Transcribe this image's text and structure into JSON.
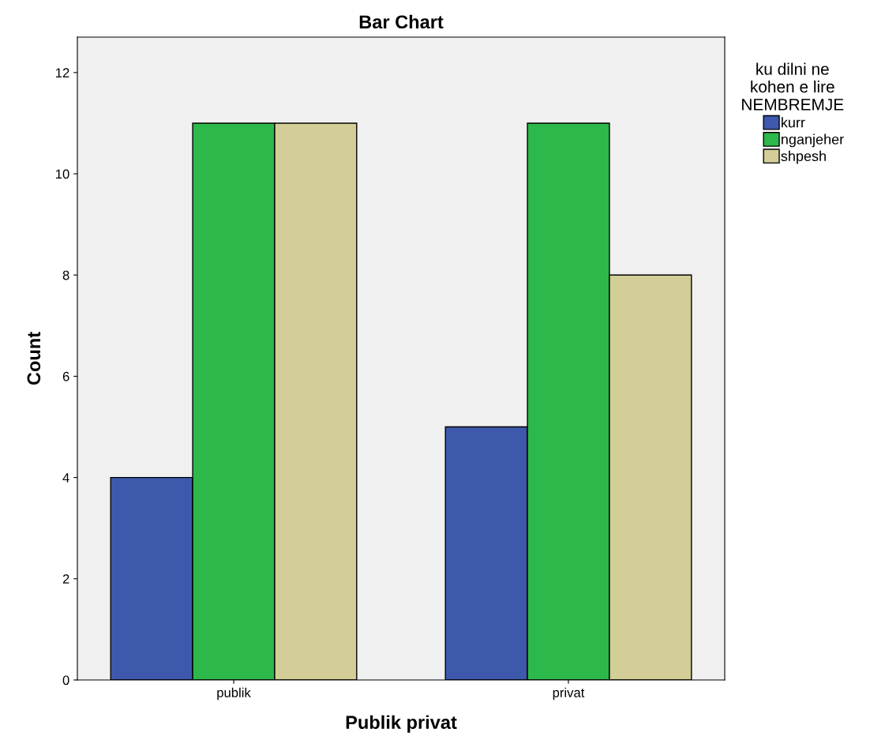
{
  "chart_data": {
    "type": "bar",
    "title": "Bar Chart",
    "xlabel": "Publik privat",
    "ylabel": "Count",
    "legend_title": "ku dilni ne\nkohen e lire\nNEMBREMJE",
    "categories": [
      "publik",
      "privat"
    ],
    "series": [
      {
        "name": "kurr",
        "color": "#3e58ac",
        "values": [
          4,
          5
        ]
      },
      {
        "name": "nganjeher",
        "color": "#2db84b",
        "values": [
          11,
          11
        ]
      },
      {
        "name": "shpesh",
        "color": "#d3ce97",
        "values": [
          11,
          8
        ]
      }
    ],
    "ylim": [
      0,
      12.7
    ],
    "yticks": [
      0,
      2,
      4,
      6,
      8,
      10,
      12
    ],
    "grid": false,
    "legend": "right"
  }
}
